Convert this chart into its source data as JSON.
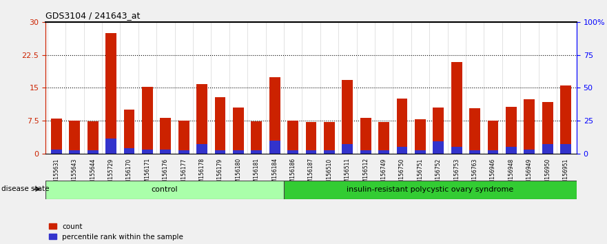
{
  "title": "GDS3104 / 241643_at",
  "samples": [
    "GSM155631",
    "GSM155643",
    "GSM155644",
    "GSM155729",
    "GSM156170",
    "GSM156171",
    "GSM156176",
    "GSM156177",
    "GSM156178",
    "GSM156179",
    "GSM156180",
    "GSM156181",
    "GSM156184",
    "GSM156186",
    "GSM156187",
    "GSM156510",
    "GSM156511",
    "GSM156512",
    "GSM156749",
    "GSM156750",
    "GSM156751",
    "GSM156752",
    "GSM156753",
    "GSM156763",
    "GSM156946",
    "GSM156948",
    "GSM156949",
    "GSM156950",
    "GSM156951"
  ],
  "count_values": [
    8.0,
    7.5,
    7.4,
    27.5,
    10.0,
    15.3,
    8.2,
    7.6,
    15.8,
    12.8,
    10.5,
    7.4,
    17.5,
    7.5,
    7.2,
    7.2,
    16.8,
    8.2,
    7.2,
    12.5,
    7.8,
    10.5,
    20.8,
    10.4,
    7.5,
    10.6,
    12.4,
    11.8,
    15.5
  ],
  "percentile_values": [
    1.0,
    0.8,
    0.8,
    3.5,
    1.2,
    1.0,
    0.9,
    0.8,
    2.2,
    0.8,
    0.8,
    0.8,
    3.0,
    0.8,
    0.8,
    0.8,
    2.2,
    0.8,
    0.8,
    1.5,
    0.8,
    2.8,
    1.5,
    0.8,
    0.8,
    1.5,
    1.0,
    2.2,
    2.2
  ],
  "group_labels": [
    "control",
    "insulin-resistant polycystic ovary syndrome"
  ],
  "group_sizes": [
    13,
    16
  ],
  "bar_color": "#CC2200",
  "percentile_color": "#3333CC",
  "ylim_left": [
    0,
    30
  ],
  "ylim_right": [
    0,
    100
  ],
  "yticks_left": [
    0,
    7.5,
    15,
    22.5,
    30
  ],
  "ytick_labels_left": [
    "0",
    "7.5",
    "15",
    "22.5",
    "30"
  ],
  "yticks_right": [
    0,
    25,
    50,
    75,
    100
  ],
  "ytick_labels_right": [
    "0",
    "25",
    "50",
    "75",
    "100%"
  ],
  "disease_state_label": "disease state",
  "legend_count_label": "count",
  "legend_percentile_label": "percentile rank within the sample",
  "background_color": "#F0F0F0",
  "plot_bg_color": "#FFFFFF",
  "bar_width": 0.6
}
